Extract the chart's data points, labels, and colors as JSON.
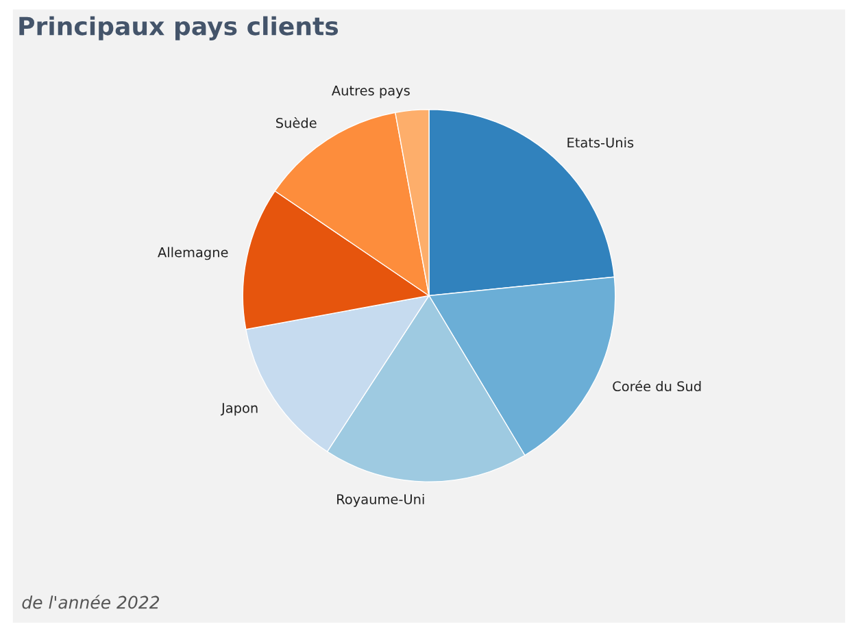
{
  "chart_data": {
    "type": "pie",
    "title": "Principaux pays clients",
    "categories": [
      "Etats-Unis",
      "Corée du Sud",
      "Royaume-Uni",
      "Japon",
      "Allemagne",
      "Suède",
      "Autres pays"
    ],
    "values": [
      23.4,
      18,
      17.8,
      12.9,
      12.4,
      12.6,
      2.9
    ],
    "colors": [
      "#3182bd",
      "#6baed6",
      "#9ecae1",
      "#c6dbef",
      "#e6550d",
      "#fd8d3c",
      "#fdae6b"
    ],
    "annotations": [
      "de l'année 2022"
    ]
  }
}
